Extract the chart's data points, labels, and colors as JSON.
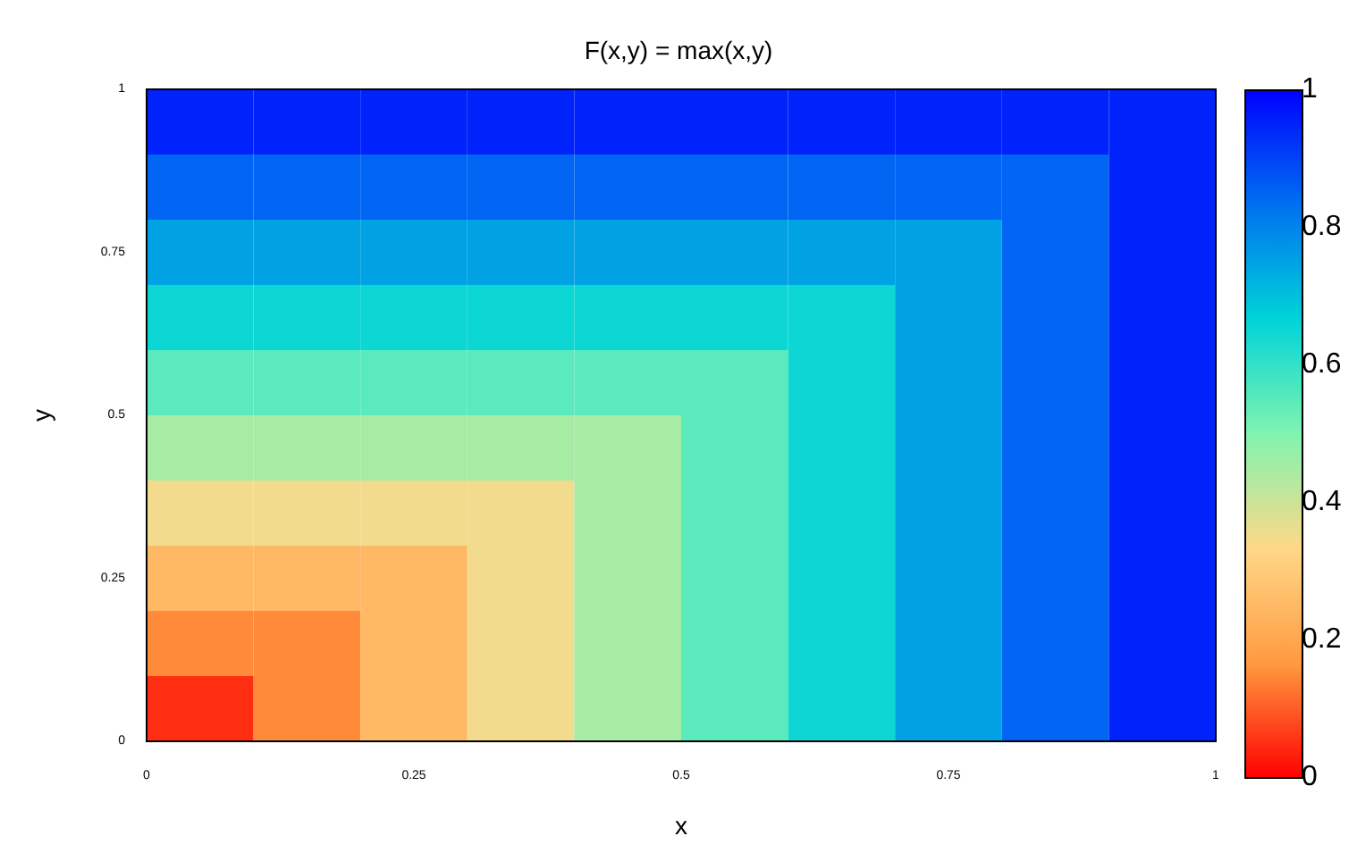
{
  "chart_data": {
    "type": "heatmap",
    "title": "F(x,y) = max(x,y)",
    "xlabel": "x",
    "ylabel": "y",
    "x": [
      0.05,
      0.15,
      0.25,
      0.35,
      0.45,
      0.55,
      0.65,
      0.75,
      0.85,
      0.95
    ],
    "y": [
      0.95,
      0.85,
      0.75,
      0.65,
      0.55,
      0.45,
      0.35,
      0.25,
      0.15,
      0.05
    ],
    "cells": [
      [
        0.95,
        0.95,
        0.95,
        0.95,
        0.95,
        0.95,
        0.95,
        0.95,
        0.95,
        0.95
      ],
      [
        0.85,
        0.85,
        0.85,
        0.85,
        0.85,
        0.85,
        0.85,
        0.85,
        0.85,
        0.95
      ],
      [
        0.75,
        0.75,
        0.75,
        0.75,
        0.75,
        0.75,
        0.75,
        0.75,
        0.85,
        0.95
      ],
      [
        0.65,
        0.65,
        0.65,
        0.65,
        0.65,
        0.65,
        0.65,
        0.75,
        0.85,
        0.95
      ],
      [
        0.55,
        0.55,
        0.55,
        0.55,
        0.55,
        0.55,
        0.65,
        0.75,
        0.85,
        0.95
      ],
      [
        0.45,
        0.45,
        0.45,
        0.45,
        0.45,
        0.55,
        0.65,
        0.75,
        0.85,
        0.95
      ],
      [
        0.35,
        0.35,
        0.35,
        0.35,
        0.45,
        0.55,
        0.65,
        0.75,
        0.85,
        0.95
      ],
      [
        0.25,
        0.25,
        0.25,
        0.35,
        0.45,
        0.55,
        0.65,
        0.75,
        0.85,
        0.95
      ],
      [
        0.15,
        0.15,
        0.25,
        0.35,
        0.45,
        0.55,
        0.65,
        0.75,
        0.85,
        0.95
      ],
      [
        0.05,
        0.15,
        0.25,
        0.35,
        0.45,
        0.55,
        0.65,
        0.75,
        0.85,
        0.95
      ]
    ],
    "xlim": [
      0,
      1
    ],
    "xticks": [
      0,
      0.25,
      0.5,
      0.75,
      1
    ],
    "ylim": [
      0,
      1
    ],
    "yticks": [
      0,
      0.25,
      0.5,
      0.75,
      1
    ],
    "clim": [
      0,
      1
    ],
    "cticks": [
      0,
      0.2,
      0.4,
      0.6,
      0.8,
      1
    ],
    "colors": [
      "#ff0000",
      "#ff9a40",
      "#ffd888",
      "#80f4b0",
      "#00d4d8",
      "#0070f0",
      "#0000ff"
    ]
  }
}
